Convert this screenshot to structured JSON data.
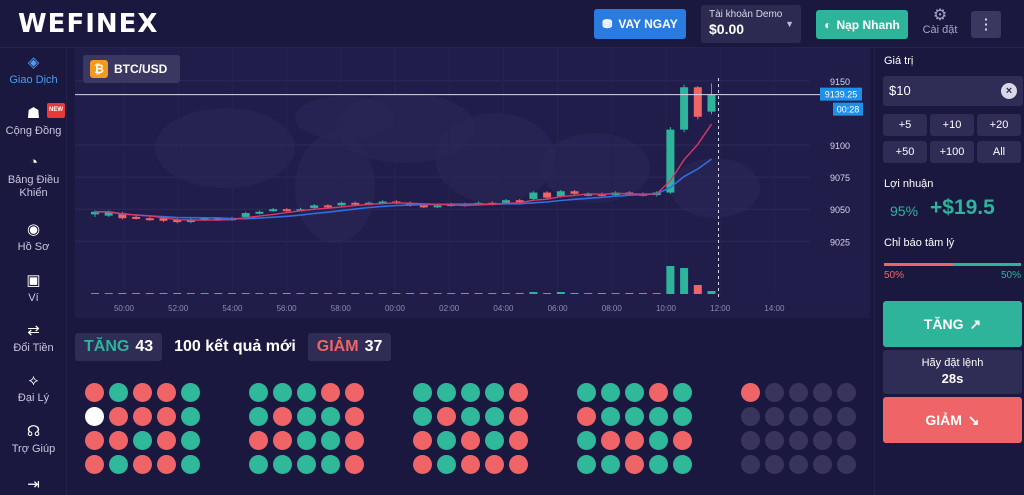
{
  "header": {
    "logo": "WEFINEX",
    "loan_button": "VAY NGAY",
    "account_label": "Tài khoản Demo",
    "account_balance": "$0.00",
    "deposit_button": "Nạp Nhanh",
    "settings_label": "Cài đặt"
  },
  "sidebar": {
    "items": [
      {
        "label": "Giao Dịch",
        "icon": "trade-icon"
      },
      {
        "label": "Cộng Đồng",
        "icon": "community-icon",
        "badge": "NEW"
      },
      {
        "label": "Bảng Điều Khiển",
        "icon": "dashboard-icon"
      },
      {
        "label": "Hồ Sơ",
        "icon": "profile-icon"
      },
      {
        "label": "Ví",
        "icon": "wallet-icon"
      },
      {
        "label": "Đổi Tiền",
        "icon": "exchange-icon"
      },
      {
        "label": "Đại Lý",
        "icon": "agency-icon"
      },
      {
        "label": "Trợ Giúp",
        "icon": "support-icon"
      }
    ]
  },
  "chart": {
    "pair": "BTC/USD",
    "current_price": "9139.25",
    "countdown": "00:28"
  },
  "chart_data": {
    "type": "candlestick",
    "y_ticks": [
      9025,
      9050,
      9075,
      9100,
      9150
    ],
    "ylim": [
      9012,
      9160
    ],
    "x_ticks": [
      "50:00",
      "52:00",
      "54:00",
      "56:00",
      "58:00",
      "00:00",
      "02:00",
      "04:00",
      "06:00",
      "08:00",
      "10:00",
      "12:00",
      "14:00"
    ],
    "candles": [
      {
        "o": 9046,
        "c": 9048,
        "h": 9049,
        "l": 9044
      },
      {
        "o": 9045,
        "c": 9048,
        "h": 9049,
        "l": 9044
      },
      {
        "o": 9047,
        "c": 9043,
        "h": 9048,
        "l": 9042
      },
      {
        "o": 9044,
        "c": 9043,
        "h": 9045,
        "l": 9042
      },
      {
        "o": 9043,
        "c": 9042,
        "h": 9044,
        "l": 9041
      },
      {
        "o": 9043,
        "c": 9041,
        "h": 9044,
        "l": 9040
      },
      {
        "o": 9042,
        "c": 9040,
        "h": 9043,
        "l": 9039
      },
      {
        "o": 9040,
        "c": 9042,
        "h": 9043,
        "l": 9039
      },
      {
        "o": 9042,
        "c": 9043,
        "h": 9044,
        "l": 9041
      },
      {
        "o": 9043,
        "c": 9042,
        "h": 9044,
        "l": 9041
      },
      {
        "o": 9042,
        "c": 9043,
        "h": 9044,
        "l": 9041
      },
      {
        "o": 9044,
        "c": 9047,
        "h": 9048,
        "l": 9043
      },
      {
        "o": 9047,
        "c": 9048,
        "h": 9049,
        "l": 9046
      },
      {
        "o": 9049,
        "c": 9050,
        "h": 9051,
        "l": 9048
      },
      {
        "o": 9050,
        "c": 9049,
        "h": 9051,
        "l": 9048
      },
      {
        "o": 9050,
        "c": 9050,
        "h": 9051,
        "l": 9049
      },
      {
        "o": 9051,
        "c": 9053,
        "h": 9054,
        "l": 9050
      },
      {
        "o": 9053,
        "c": 9052,
        "h": 9054,
        "l": 9051
      },
      {
        "o": 9053,
        "c": 9055,
        "h": 9056,
        "l": 9052
      },
      {
        "o": 9055,
        "c": 9054,
        "h": 9056,
        "l": 9053
      },
      {
        "o": 9054,
        "c": 9055,
        "h": 9056,
        "l": 9053
      },
      {
        "o": 9055,
        "c": 9056,
        "h": 9057,
        "l": 9054
      },
      {
        "o": 9056,
        "c": 9055,
        "h": 9057,
        "l": 9054
      },
      {
        "o": 9055,
        "c": 9053,
        "h": 9056,
        "l": 9052
      },
      {
        "o": 9053,
        "c": 9052,
        "h": 9054,
        "l": 9051
      },
      {
        "o": 9052,
        "c": 9053,
        "h": 9054,
        "l": 9051
      },
      {
        "o": 9053,
        "c": 9054,
        "h": 9055,
        "l": 9052
      },
      {
        "o": 9054,
        "c": 9053,
        "h": 9055,
        "l": 9052
      },
      {
        "o": 9054,
        "c": 9055,
        "h": 9056,
        "l": 9053
      },
      {
        "o": 9055,
        "c": 9054,
        "h": 9056,
        "l": 9053
      },
      {
        "o": 9055,
        "c": 9057,
        "h": 9058,
        "l": 9054
      },
      {
        "o": 9057,
        "c": 9056,
        "h": 9058,
        "l": 9055
      },
      {
        "o": 9058,
        "c": 9063,
        "h": 9064,
        "l": 9057
      },
      {
        "o": 9063,
        "c": 9059,
        "h": 9064,
        "l": 9058
      },
      {
        "o": 9060,
        "c": 9064,
        "h": 9065,
        "l": 9059
      },
      {
        "o": 9064,
        "c": 9062,
        "h": 9065,
        "l": 9061
      },
      {
        "o": 9061,
        "c": 9062,
        "h": 9063,
        "l": 9060
      },
      {
        "o": 9062,
        "c": 9061,
        "h": 9063,
        "l": 9060
      },
      {
        "o": 9061,
        "c": 9063,
        "h": 9064,
        "l": 9060
      },
      {
        "o": 9063,
        "c": 9062,
        "h": 9064,
        "l": 9061
      },
      {
        "o": 9062,
        "c": 9061,
        "h": 9063,
        "l": 9060
      },
      {
        "o": 9061,
        "c": 9063,
        "h": 9064,
        "l": 9060
      },
      {
        "o": 9063,
        "c": 9112,
        "h": 9114,
        "l": 9062
      },
      {
        "o": 9112,
        "c": 9145,
        "h": 9147,
        "l": 9110
      },
      {
        "o": 9145,
        "c": 9122,
        "h": 9146,
        "l": 9120
      },
      {
        "o": 9126,
        "c": 9139,
        "h": 9148,
        "l": 9124
      }
    ],
    "volumes": [
      1,
      1,
      1,
      1,
      1,
      1,
      1,
      1,
      1,
      1,
      1,
      1,
      1,
      1,
      1,
      1,
      1,
      1,
      1,
      1,
      1,
      1,
      1,
      1,
      1,
      1,
      1,
      1,
      1,
      1,
      1,
      1,
      2,
      1,
      2,
      1,
      1,
      1,
      1,
      1,
      1,
      1,
      28,
      26,
      9,
      3
    ],
    "grid": true
  },
  "results": {
    "up_label": "TĂNG",
    "up_count": "43",
    "middle_text": "100 kết quả mới",
    "down_label": "GIẢM",
    "down_count": "37",
    "grids": [
      [
        "r",
        "g",
        "r",
        "r",
        "g",
        "w",
        "r",
        "r",
        "r",
        "g",
        "r",
        "r",
        "g",
        "r",
        "g",
        "r",
        "g",
        "r",
        "r",
        "g"
      ],
      [
        "g",
        "g",
        "g",
        "r",
        "r",
        "g",
        "r",
        "g",
        "g",
        "r",
        "r",
        "r",
        "g",
        "g",
        "r",
        "g",
        "g",
        "g",
        "g",
        "r"
      ],
      [
        "g",
        "g",
        "g",
        "g",
        "r",
        "g",
        "r",
        "g",
        "g",
        "r",
        "r",
        "g",
        "r",
        "g",
        "r",
        "r",
        "g",
        "r",
        "r",
        "r"
      ],
      [
        "g",
        "g",
        "g",
        "r",
        "g",
        "r",
        "g",
        "g",
        "g",
        "g",
        "g",
        "r",
        "r",
        "g",
        "r",
        "g",
        "g",
        "r",
        "g",
        "g"
      ],
      [
        "r",
        "e",
        "e",
        "e",
        "e",
        "e",
        "e",
        "e",
        "e",
        "e",
        "e",
        "e",
        "e",
        "e",
        "e",
        "e",
        "e",
        "e",
        "e",
        "e"
      ]
    ]
  },
  "panel": {
    "value_label": "Giá trị",
    "amount": "$10",
    "quick": [
      "+5",
      "+10",
      "+20",
      "+50",
      "+100",
      "All"
    ],
    "profit_label": "Lợi nhuận",
    "profit_pct": "95%",
    "profit_value": "+$19.5",
    "sentiment_label": "Chỉ báo tâm lý",
    "sentiment_sell": "50%",
    "sentiment_buy": "50%",
    "up_button": "TĂNG",
    "wait_text": "Hãy đặt lệnh",
    "wait_seconds": "28s",
    "down_button": "GIẢM"
  },
  "colors": {
    "up": "#2eb49a",
    "down": "#ef6567",
    "accent": "#2a7be0",
    "background": "#1b1840"
  }
}
